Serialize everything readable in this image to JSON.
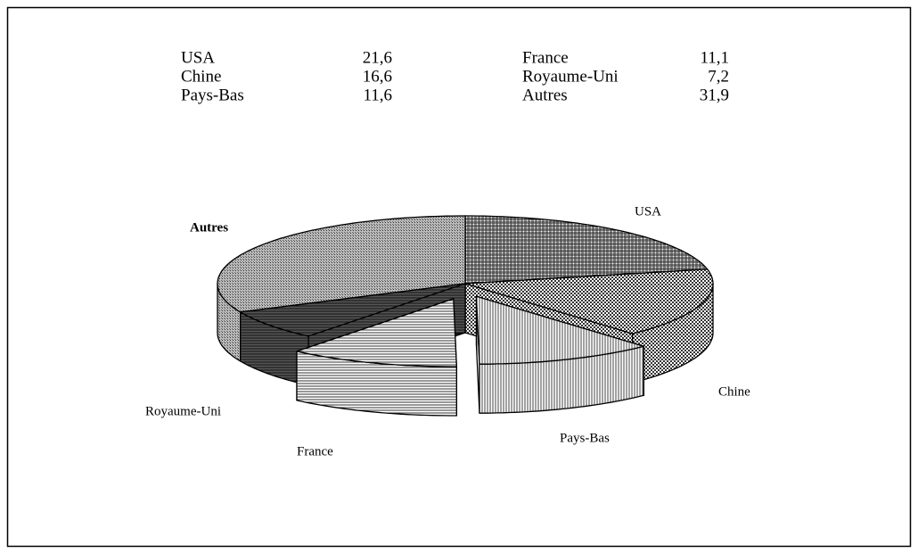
{
  "chart_data": {
    "type": "pie",
    "categories": [
      "USA",
      "Chine",
      "Pays-Bas",
      "France",
      "Royaume-Uni",
      "Autres"
    ],
    "values": [
      21.6,
      16.6,
      11.6,
      11.1,
      7.2,
      31.9
    ],
    "value_labels": [
      "21,6",
      "16,6",
      "11,6",
      "11,1",
      "7,2",
      "31,9"
    ]
  }
}
